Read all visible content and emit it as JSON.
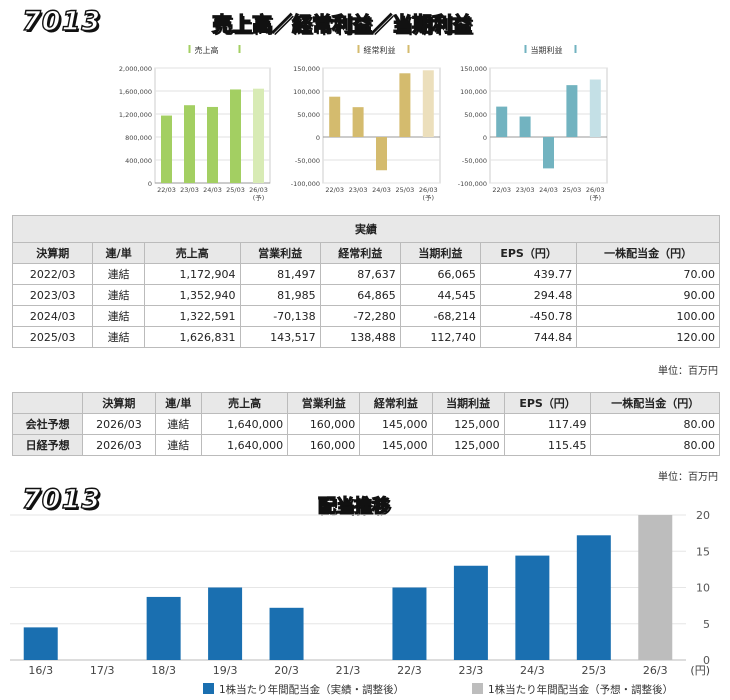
{
  "header": {
    "code": "7013",
    "title": "売上高／経常利益／当期利益"
  },
  "colors": {
    "sales": "#a3cf62",
    "sales_forecast": "#d8ebb5",
    "ordinary": "#d4bb6e",
    "ordinary_forecast": "#ecdfbc",
    "net": "#72b3c0",
    "net_forecast": "#c4e0e6",
    "dividend": "#1a6fb0",
    "dividend_forecast": "#bdbdbd"
  },
  "chart_data": [
    {
      "type": "bar",
      "legend": "売上高",
      "categories": [
        "22/03",
        "23/03",
        "24/03",
        "25/03",
        "26/03"
      ],
      "category_notes": [
        "",
        "",
        "",
        "",
        "(予)"
      ],
      "values": [
        1172904,
        1352940,
        1322591,
        1626831,
        1640000
      ],
      "ylim": [
        0,
        2000000
      ],
      "ticks": [
        "2,000,000",
        "1,600,000",
        "1,200,000",
        "800,000",
        "400,000",
        "0"
      ],
      "tick_values": [
        2000000,
        1600000,
        1200000,
        800000,
        400000,
        0
      ]
    },
    {
      "type": "bar",
      "legend": "経常利益",
      "categories": [
        "22/03",
        "23/03",
        "24/03",
        "25/03",
        "26/03"
      ],
      "category_notes": [
        "",
        "",
        "",
        "",
        "(予)"
      ],
      "values": [
        87637,
        64865,
        -72280,
        138488,
        145000
      ],
      "ylim": [
        -100000,
        150000
      ],
      "ticks": [
        "150,000",
        "100,000",
        "50,000",
        "0",
        "-50,000",
        "-100,000"
      ],
      "tick_values": [
        150000,
        100000,
        50000,
        0,
        -50000,
        -100000
      ]
    },
    {
      "type": "bar",
      "legend": "当期利益",
      "categories": [
        "22/03",
        "23/03",
        "24/03",
        "25/03",
        "26/03"
      ],
      "category_notes": [
        "",
        "",
        "",
        "",
        "(予)"
      ],
      "values": [
        66065,
        44545,
        -68214,
        112740,
        125000
      ],
      "ylim": [
        -100000,
        150000
      ],
      "ticks": [
        "150,000",
        "100,000",
        "50,000",
        "0",
        "-50,000",
        "-100,000"
      ],
      "tick_values": [
        150000,
        100000,
        50000,
        0,
        -50000,
        -100000
      ]
    },
    {
      "type": "bar",
      "title": "配当推移",
      "categories": [
        "16/3",
        "17/3",
        "18/3",
        "19/3",
        "20/3",
        "21/3",
        "22/3",
        "23/3",
        "24/3",
        "25/3",
        "26/3"
      ],
      "values": [
        4.5,
        null,
        8.7,
        10.0,
        7.2,
        null,
        10.0,
        13.0,
        14.4,
        17.2,
        20.0
      ],
      "forecast": [
        false,
        false,
        false,
        false,
        false,
        false,
        false,
        false,
        false,
        false,
        true
      ],
      "ylim": [
        0,
        20
      ],
      "ticks": [
        "20",
        "15",
        "10",
        "5",
        "0"
      ],
      "tick_values": [
        20,
        15,
        10,
        5,
        0
      ],
      "unit": "(円)",
      "legend": [
        "1株当たり年間配当金（実績・調整後）",
        "1株当たり年間配当金（予想・調整後）"
      ]
    }
  ],
  "results_table": {
    "caption": "実績",
    "headers": [
      "決算期",
      "連/単",
      "売上高",
      "営業利益",
      "経常利益",
      "当期利益",
      "EPS（円）",
      "一株配当金（円）"
    ],
    "rows": [
      [
        "2022/03",
        "連結",
        "1,172,904",
        "81,497",
        "87,637",
        "66,065",
        "439.77",
        "70.00"
      ],
      [
        "2023/03",
        "連結",
        "1,352,940",
        "81,985",
        "64,865",
        "44,545",
        "294.48",
        "90.00"
      ],
      [
        "2024/03",
        "連結",
        "1,322,591",
        "-70,138",
        "-72,280",
        "-68,214",
        "-450.78",
        "100.00"
      ],
      [
        "2025/03",
        "連結",
        "1,626,831",
        "143,517",
        "138,488",
        "112,740",
        "744.84",
        "120.00"
      ]
    ],
    "unit": "単位：百万円"
  },
  "forecast_table": {
    "headers": [
      "",
      "決算期",
      "連/単",
      "売上高",
      "営業利益",
      "経常利益",
      "当期利益",
      "EPS（円）",
      "一株配当金（円）"
    ],
    "rows": [
      [
        "会社予想",
        "2026/03",
        "連結",
        "1,640,000",
        "160,000",
        "145,000",
        "125,000",
        "117.49",
        "80.00"
      ],
      [
        "日経予想",
        "2026/03",
        "連結",
        "1,640,000",
        "160,000",
        "145,000",
        "125,000",
        "115.45",
        "80.00"
      ]
    ],
    "unit": "単位：百万円"
  }
}
